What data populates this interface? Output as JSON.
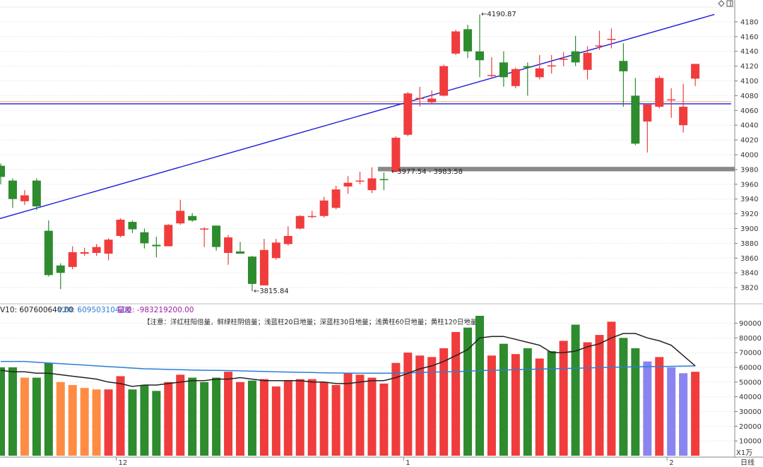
{
  "chart_data": [
    {
      "type": "candlestick",
      "period_label": "日线",
      "ylim": [
        3800,
        4200
      ],
      "y_ticks": [
        3820,
        3840,
        3860,
        3880,
        3900,
        3920,
        3940,
        3960,
        3980,
        4000,
        4020,
        4040,
        4060,
        4080,
        4100,
        4120,
        4140,
        4160,
        4180
      ],
      "x_month_labels": [
        {
          "label": "12",
          "index": 10
        },
        {
          "label": "1",
          "index": 34
        },
        {
          "label": "2",
          "index": 56
        }
      ],
      "up_color": "#f03c3c",
      "down_color": "#2e8b2e",
      "candles": [
        {
          "o": 3985,
          "h": 3988,
          "l": 3960,
          "c": 3970
        },
        {
          "o": 3965,
          "h": 3968,
          "l": 3928,
          "c": 3940
        },
        {
          "o": 3937,
          "h": 3952,
          "l": 3932,
          "c": 3945
        },
        {
          "o": 3965,
          "h": 3968,
          "l": 3925,
          "c": 3930
        },
        {
          "o": 3897,
          "h": 3911,
          "l": 3835,
          "c": 3837
        },
        {
          "o": 3850,
          "h": 3853,
          "l": 3818,
          "c": 3840
        },
        {
          "o": 3848,
          "h": 3876,
          "l": 3845,
          "c": 3868
        },
        {
          "o": 3866,
          "h": 3874,
          "l": 3863,
          "c": 3868
        },
        {
          "o": 3867,
          "h": 3879,
          "l": 3863,
          "c": 3875
        },
        {
          "o": 3866,
          "h": 3887,
          "l": 3857,
          "c": 3885
        },
        {
          "o": 3890,
          "h": 3914,
          "l": 3888,
          "c": 3912
        },
        {
          "o": 3909,
          "h": 3911,
          "l": 3894,
          "c": 3899
        },
        {
          "o": 3895,
          "h": 3900,
          "l": 3873,
          "c": 3880
        },
        {
          "o": 3878,
          "h": 3889,
          "l": 3861,
          "c": 3876
        },
        {
          "o": 3876,
          "h": 3906,
          "l": 3876,
          "c": 3905
        },
        {
          "o": 3907,
          "h": 3939,
          "l": 3905,
          "c": 3924
        },
        {
          "o": 3917,
          "h": 3921,
          "l": 3909,
          "c": 3911
        },
        {
          "o": 3900,
          "h": 3902,
          "l": 3875,
          "c": 3900
        },
        {
          "o": 3904,
          "h": 3904,
          "l": 3870,
          "c": 3875
        },
        {
          "o": 3867,
          "h": 3891,
          "l": 3851,
          "c": 3888
        },
        {
          "o": 3869,
          "h": 3882,
          "l": 3866,
          "c": 3866
        },
        {
          "o": 3862,
          "h": 3863,
          "l": 3815,
          "c": 3825
        },
        {
          "o": 3823,
          "h": 3886,
          "l": 3823,
          "c": 3871
        },
        {
          "o": 3860,
          "h": 3886,
          "l": 3858,
          "c": 3881
        },
        {
          "o": 3879,
          "h": 3903,
          "l": 3877,
          "c": 3890
        },
        {
          "o": 3900,
          "h": 3918,
          "l": 3899,
          "c": 3917
        },
        {
          "o": 3917,
          "h": 3924,
          "l": 3914,
          "c": 3917
        },
        {
          "o": 3917,
          "h": 3943,
          "l": 3915,
          "c": 3938
        },
        {
          "o": 3928,
          "h": 3958,
          "l": 3926,
          "c": 3953
        },
        {
          "o": 3957,
          "h": 3971,
          "l": 3947,
          "c": 3962
        },
        {
          "o": 3964,
          "h": 3977,
          "l": 3960,
          "c": 3965
        },
        {
          "o": 3952,
          "h": 3983,
          "l": 3948,
          "c": 3968
        },
        {
          "o": 3967,
          "h": 3976,
          "l": 3952,
          "c": 3966
        },
        {
          "o": 3977,
          "h": 4025,
          "l": 3977,
          "c": 4023
        },
        {
          "o": 4027,
          "h": 4085,
          "l": 4025,
          "c": 4083
        },
        {
          "o": 4077,
          "h": 4092,
          "l": 4065,
          "c": 4077
        },
        {
          "o": 4071,
          "h": 4087,
          "l": 4069,
          "c": 4076
        },
        {
          "o": 4080,
          "h": 4122,
          "l": 4079,
          "c": 4120
        },
        {
          "o": 4137,
          "h": 4169,
          "l": 4135,
          "c": 4167
        },
        {
          "o": 4170,
          "h": 4176,
          "l": 4131,
          "c": 4140
        },
        {
          "o": 4140,
          "h": 4190,
          "l": 4105,
          "c": 4128
        },
        {
          "o": 4107,
          "h": 4132,
          "l": 4105,
          "c": 4108
        },
        {
          "o": 4125,
          "h": 4140,
          "l": 4092,
          "c": 4105
        },
        {
          "o": 4093,
          "h": 4118,
          "l": 4090,
          "c": 4116
        },
        {
          "o": 4120,
          "h": 4125,
          "l": 4080,
          "c": 4118
        },
        {
          "o": 4105,
          "h": 4135,
          "l": 4102,
          "c": 4117
        },
        {
          "o": 4121,
          "h": 4135,
          "l": 4110,
          "c": 4121
        },
        {
          "o": 4130,
          "h": 4139,
          "l": 4120,
          "c": 4130
        },
        {
          "o": 4140,
          "h": 4161,
          "l": 4120,
          "c": 4125
        },
        {
          "o": 4115,
          "h": 4147,
          "l": 4102,
          "c": 4138
        },
        {
          "o": 4148,
          "h": 4168,
          "l": 4142,
          "c": 4148
        },
        {
          "o": 4157,
          "h": 4171,
          "l": 4144,
          "c": 4157
        },
        {
          "o": 4127,
          "h": 4151,
          "l": 4065,
          "c": 4113
        },
        {
          "o": 4080,
          "h": 4104,
          "l": 4013,
          "c": 4015
        },
        {
          "o": 4045,
          "h": 4069,
          "l": 4003,
          "c": 4068
        },
        {
          "o": 4065,
          "h": 4107,
          "l": 4063,
          "c": 4104
        },
        {
          "o": 4075,
          "h": 4090,
          "l": 4050,
          "c": 4075
        },
        {
          "o": 4040,
          "h": 4096,
          "l": 4030,
          "c": 4065
        },
        {
          "o": 4103,
          "h": 4123,
          "l": 4093,
          "c": 4123
        }
      ],
      "trendlines": [
        {
          "color": "#1c1cd8",
          "points": [
            {
              "i": -0.6,
              "v": 3911
            },
            {
              "i": 59.6,
              "v": 4190
            }
          ]
        },
        {
          "color": "#1c1cd8",
          "points": [
            {
              "i": -0.6,
              "v": 4069
            },
            {
              "i": 61,
              "v": 4069
            }
          ]
        },
        {
          "color": "#f4b07a",
          "points": [
            {
              "i": -0.6,
              "v": 4072
            },
            {
              "i": 61,
              "v": 4072
            }
          ]
        }
      ],
      "zone": {
        "from_index": 31.5,
        "v_low": 3977.54,
        "v_high": 3983.58,
        "color": "#888888"
      },
      "annotations": [
        {
          "text": "4190.87",
          "i": 40,
          "v": 4190.87
        },
        {
          "text": "3977.54 - 3983.58",
          "i": 32.5,
          "v": 3977.54
        },
        {
          "text": "3815.84",
          "i": 21,
          "v": 3815.84
        }
      ]
    },
    {
      "type": "bar",
      "name": "volume",
      "ylim": [
        0,
        95000
      ],
      "y_ticks": [
        10000,
        20000,
        30000,
        40000,
        50000,
        60000,
        70000,
        80000,
        90000
      ],
      "unit_label": "X1万",
      "ma_labels": [
        {
          "text": "V10: 607600640.00",
          "color": "#222222"
        },
        {
          "text": "V20: 609503104.00",
          "color": "#2b7fd6"
        },
        {
          "text": "量差: -983219200.00",
          "color": "#a020a0"
        }
      ],
      "note": "【注意：洋红柱阳倍量，鲜绿柱阴倍量；浅蓝柱20日地量；深蓝柱30日地量；浅黄柱60日地量；黄柱120日地量】",
      "color_map": {
        "r": "#f03c3c",
        "g": "#2e8b2e",
        "o": "#ff8c42",
        "p": "#8a84f0"
      },
      "volumes": [
        {
          "v": 60000,
          "c": "g"
        },
        {
          "v": 60000,
          "c": "g"
        },
        {
          "v": 53000,
          "c": "o"
        },
        {
          "v": 53000,
          "c": "g"
        },
        {
          "v": 63000,
          "c": "g"
        },
        {
          "v": 50000,
          "c": "o"
        },
        {
          "v": 48000,
          "c": "o"
        },
        {
          "v": 46000,
          "c": "o"
        },
        {
          "v": 45000,
          "c": "o"
        },
        {
          "v": 45000,
          "c": "r"
        },
        {
          "v": 54000,
          "c": "r"
        },
        {
          "v": 45000,
          "c": "g"
        },
        {
          "v": 48000,
          "c": "g"
        },
        {
          "v": 44000,
          "c": "g"
        },
        {
          "v": 50000,
          "c": "r"
        },
        {
          "v": 55000,
          "c": "r"
        },
        {
          "v": 53000,
          "c": "g"
        },
        {
          "v": 50000,
          "c": "g"
        },
        {
          "v": 53000,
          "c": "g"
        },
        {
          "v": 57000,
          "c": "r"
        },
        {
          "v": 50000,
          "c": "r"
        },
        {
          "v": 51000,
          "c": "g"
        },
        {
          "v": 52000,
          "c": "r"
        },
        {
          "v": 47000,
          "c": "r"
        },
        {
          "v": 51000,
          "c": "r"
        },
        {
          "v": 52000,
          "c": "r"
        },
        {
          "v": 52000,
          "c": "r"
        },
        {
          "v": 50000,
          "c": "r"
        },
        {
          "v": 48000,
          "c": "r"
        },
        {
          "v": 56000,
          "c": "r"
        },
        {
          "v": 55000,
          "c": "r"
        },
        {
          "v": 53000,
          "c": "r"
        },
        {
          "v": 49000,
          "c": "r"
        },
        {
          "v": 63000,
          "c": "r"
        },
        {
          "v": 70000,
          "c": "r"
        },
        {
          "v": 68000,
          "c": "r"
        },
        {
          "v": 67000,
          "c": "r"
        },
        {
          "v": 73000,
          "c": "r"
        },
        {
          "v": 84000,
          "c": "r"
        },
        {
          "v": 87000,
          "c": "g"
        },
        {
          "v": 95000,
          "c": "g"
        },
        {
          "v": 68000,
          "c": "r"
        },
        {
          "v": 76000,
          "c": "g"
        },
        {
          "v": 69000,
          "c": "r"
        },
        {
          "v": 73000,
          "c": "g"
        },
        {
          "v": 66000,
          "c": "r"
        },
        {
          "v": 71000,
          "c": "g"
        },
        {
          "v": 78000,
          "c": "r"
        },
        {
          "v": 89000,
          "c": "g"
        },
        {
          "v": 77000,
          "c": "r"
        },
        {
          "v": 82000,
          "c": "r"
        },
        {
          "v": 91000,
          "c": "r"
        },
        {
          "v": 80000,
          "c": "g"
        },
        {
          "v": 73000,
          "c": "g"
        },
        {
          "v": 64000,
          "c": "p"
        },
        {
          "v": 67000,
          "c": "r"
        },
        {
          "v": 60000,
          "c": "p"
        },
        {
          "v": 56000,
          "c": "p"
        },
        {
          "v": 57000,
          "c": "r"
        }
      ],
      "ma10": [
        58000,
        57000,
        57000,
        56000,
        56000,
        55000,
        54000,
        53000,
        52000,
        50000,
        49000,
        47000,
        48000,
        48000,
        49000,
        50000,
        51000,
        51000,
        52000,
        52000,
        53000,
        52000,
        51000,
        51000,
        51000,
        51000,
        50000,
        50000,
        49000,
        49000,
        50000,
        51000,
        51000,
        53000,
        56000,
        59000,
        61000,
        64000,
        68000,
        72000,
        80000,
        81000,
        81000,
        79000,
        77000,
        75000,
        70000,
        70000,
        71000,
        74000,
        76000,
        80000,
        83000,
        83000,
        80000,
        78000,
        75000,
        68000,
        61000
      ],
      "ma20": [
        64000,
        64000,
        64000,
        63500,
        63000,
        62500,
        62000,
        61500,
        61000,
        60500,
        60000,
        59500,
        59000,
        58800,
        58600,
        58400,
        58200,
        58000,
        57900,
        57800,
        57600,
        57400,
        57200,
        57000,
        56800,
        56600,
        56500,
        56300,
        56200,
        56100,
        56000,
        56000,
        56000,
        56100,
        56300,
        56500,
        56700,
        56900,
        57100,
        57400,
        57800,
        58000,
        58200,
        58400,
        58600,
        58800,
        59000,
        59200,
        59400,
        59600,
        59800,
        60000,
        60200,
        60400,
        60500,
        60600,
        60700,
        60800,
        61000
      ],
      "ma10_color": "#222222",
      "ma20_color": "#2b7fd6"
    }
  ]
}
